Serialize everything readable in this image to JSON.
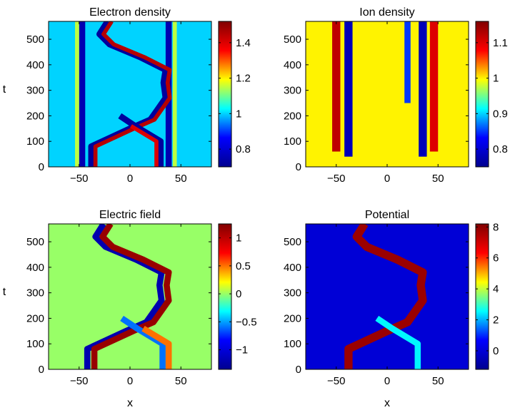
{
  "figure": {
    "colormap": [
      "#00008f",
      "#0000ff",
      "#00ffff",
      "#ffff00",
      "#ff0000",
      "#800000"
    ],
    "tick_color": "#000000"
  },
  "chart_data": [
    {
      "type": "heatmap",
      "title": "Electron density",
      "xlabel": "",
      "ylabel": "t",
      "xlim": [
        -80,
        80
      ],
      "ylim": [
        0,
        570
      ],
      "xticks": [
        -50,
        0,
        50
      ],
      "yticks": [
        0,
        100,
        200,
        300,
        400,
        500
      ],
      "colorbar": {
        "min": 0.7,
        "max": 1.52,
        "ticks": [
          0.8,
          1,
          1.2,
          1.4
        ]
      },
      "background": 1.0,
      "features": [
        {
          "kind": "band",
          "x": -47,
          "half_width": 3,
          "value": 0.75,
          "t_from": 0,
          "t_to": 570
        },
        {
          "kind": "band",
          "x": -52,
          "half_width": 2,
          "value": 1.15,
          "t_from": 0,
          "t_to": 570
        },
        {
          "kind": "band",
          "x": 38,
          "half_width": 3,
          "value": 0.75,
          "t_from": 0,
          "t_to": 570
        },
        {
          "kind": "band",
          "x": 44,
          "half_width": 2,
          "value": 1.15,
          "t_from": 0,
          "t_to": 570
        },
        {
          "kind": "path",
          "points": [
            [
              -38,
              0
            ],
            [
              -38,
              80
            ],
            [
              0,
              150
            ],
            [
              20,
              185
            ],
            [
              28,
              230
            ],
            [
              35,
              270
            ],
            [
              33,
              330
            ],
            [
              35,
              380
            ],
            [
              10,
              430
            ],
            [
              -20,
              480
            ],
            [
              -30,
              520
            ],
            [
              -22,
              570
            ]
          ],
          "half_width": 3,
          "value": 0.72
        },
        {
          "kind": "path",
          "points": [
            [
              -34,
              0
            ],
            [
              -34,
              80
            ],
            [
              4,
              150
            ],
            [
              24,
              185
            ],
            [
              32,
              230
            ],
            [
              39,
              270
            ],
            [
              37,
              330
            ],
            [
              39,
              380
            ],
            [
              14,
              430
            ],
            [
              -16,
              480
            ],
            [
              -26,
              520
            ],
            [
              -18,
              570
            ]
          ],
          "half_width": 2,
          "value": 1.45
        },
        {
          "kind": "path",
          "points": [
            [
              30,
              0
            ],
            [
              30,
              100
            ],
            [
              5,
              160
            ],
            [
              -10,
              200
            ]
          ],
          "half_width": 3,
          "value": 0.72
        },
        {
          "kind": "path",
          "points": [
            [
              26,
              0
            ],
            [
              26,
              100
            ],
            [
              1,
              160
            ]
          ],
          "half_width": 2,
          "value": 1.4
        }
      ]
    },
    {
      "type": "heatmap",
      "title": "Ion density",
      "xlabel": "",
      "ylabel": "",
      "xlim": [
        -80,
        80
      ],
      "ylim": [
        0,
        570
      ],
      "xticks": [
        -50,
        0,
        50
      ],
      "yticks": [
        0,
        100,
        200,
        300,
        400,
        500
      ],
      "colorbar": {
        "min": 0.75,
        "max": 1.16,
        "ticks": [
          0.8,
          0.9,
          1,
          1.1
        ]
      },
      "background": 1.0,
      "features": [
        {
          "kind": "band",
          "x": -50,
          "half_width": 4,
          "value": 1.12,
          "t_from": 60,
          "t_to": 570
        },
        {
          "kind": "band",
          "x": -38,
          "half_width": 4,
          "value": 0.78,
          "t_from": 40,
          "t_to": 570
        },
        {
          "kind": "band",
          "x": 35,
          "half_width": 4,
          "value": 0.78,
          "t_from": 40,
          "t_to": 570
        },
        {
          "kind": "band",
          "x": 46,
          "half_width": 4,
          "value": 1.1,
          "t_from": 60,
          "t_to": 570
        },
        {
          "kind": "band",
          "x": 20,
          "half_width": 3,
          "value": 0.85,
          "t_from": 250,
          "t_to": 570
        }
      ]
    },
    {
      "type": "heatmap",
      "title": "Electric field",
      "xlabel": "x",
      "ylabel": "t",
      "xlim": [
        -80,
        80
      ],
      "ylim": [
        0,
        570
      ],
      "xticks": [
        -50,
        0,
        50
      ],
      "yticks": [
        0,
        100,
        200,
        300,
        400,
        500
      ],
      "colorbar": {
        "min": -1.35,
        "max": 1.25,
        "ticks": [
          -1,
          -0.5,
          0,
          0.5,
          1
        ]
      },
      "background": 0.0,
      "features": [
        {
          "kind": "path",
          "points": [
            [
              -42,
              0
            ],
            [
              -42,
              80
            ],
            [
              -4,
              150
            ],
            [
              16,
              185
            ],
            [
              24,
              230
            ],
            [
              31,
              270
            ],
            [
              29,
              330
            ],
            [
              31,
              380
            ],
            [
              6,
              430
            ],
            [
              -24,
              480
            ],
            [
              -34,
              520
            ],
            [
              -26,
              570
            ]
          ],
          "half_width": 3,
          "value": -1.2
        },
        {
          "kind": "path",
          "points": [
            [
              -35,
              0
            ],
            [
              -35,
              80
            ],
            [
              3,
              150
            ],
            [
              23,
              185
            ],
            [
              31,
              230
            ],
            [
              38,
              270
            ],
            [
              36,
              330
            ],
            [
              38,
              380
            ],
            [
              13,
              430
            ],
            [
              -17,
              480
            ],
            [
              -27,
              520
            ],
            [
              -19,
              570
            ]
          ],
          "half_width": 3,
          "value": 1.15
        },
        {
          "kind": "path",
          "points": [
            [
              32,
              0
            ],
            [
              32,
              100
            ],
            [
              7,
              160
            ],
            [
              -8,
              200
            ]
          ],
          "half_width": 3,
          "value": -0.6
        },
        {
          "kind": "path",
          "points": [
            [
              38,
              0
            ],
            [
              38,
              100
            ],
            [
              13,
              160
            ]
          ],
          "half_width": 3,
          "value": 0.5
        }
      ]
    },
    {
      "type": "heatmap",
      "title": "Potential",
      "xlabel": "x",
      "ylabel": "",
      "xlim": [
        -80,
        80
      ],
      "ylim": [
        0,
        570
      ],
      "xticks": [
        -50,
        0,
        50
      ],
      "yticks": [
        0,
        100,
        200,
        300,
        400,
        500
      ],
      "colorbar": {
        "min": -1.2,
        "max": 8.2,
        "ticks": [
          0,
          2,
          4,
          6,
          8
        ]
      },
      "background": 0.0,
      "features": [
        {
          "kind": "path",
          "points": [
            [
              -38,
              0
            ],
            [
              -38,
              80
            ],
            [
              0,
              150
            ],
            [
              20,
              185
            ],
            [
              28,
              230
            ],
            [
              35,
              270
            ],
            [
              33,
              330
            ],
            [
              35,
              380
            ],
            [
              10,
              430
            ],
            [
              -20,
              480
            ],
            [
              -30,
              520
            ],
            [
              -22,
              570
            ]
          ],
          "half_width": 4,
          "value": 7.8
        },
        {
          "kind": "path",
          "points": [
            [
              30,
              0
            ],
            [
              30,
              100
            ],
            [
              5,
              160
            ],
            [
              -10,
              200
            ]
          ],
          "half_width": 3,
          "value": 2.5
        }
      ]
    }
  ]
}
